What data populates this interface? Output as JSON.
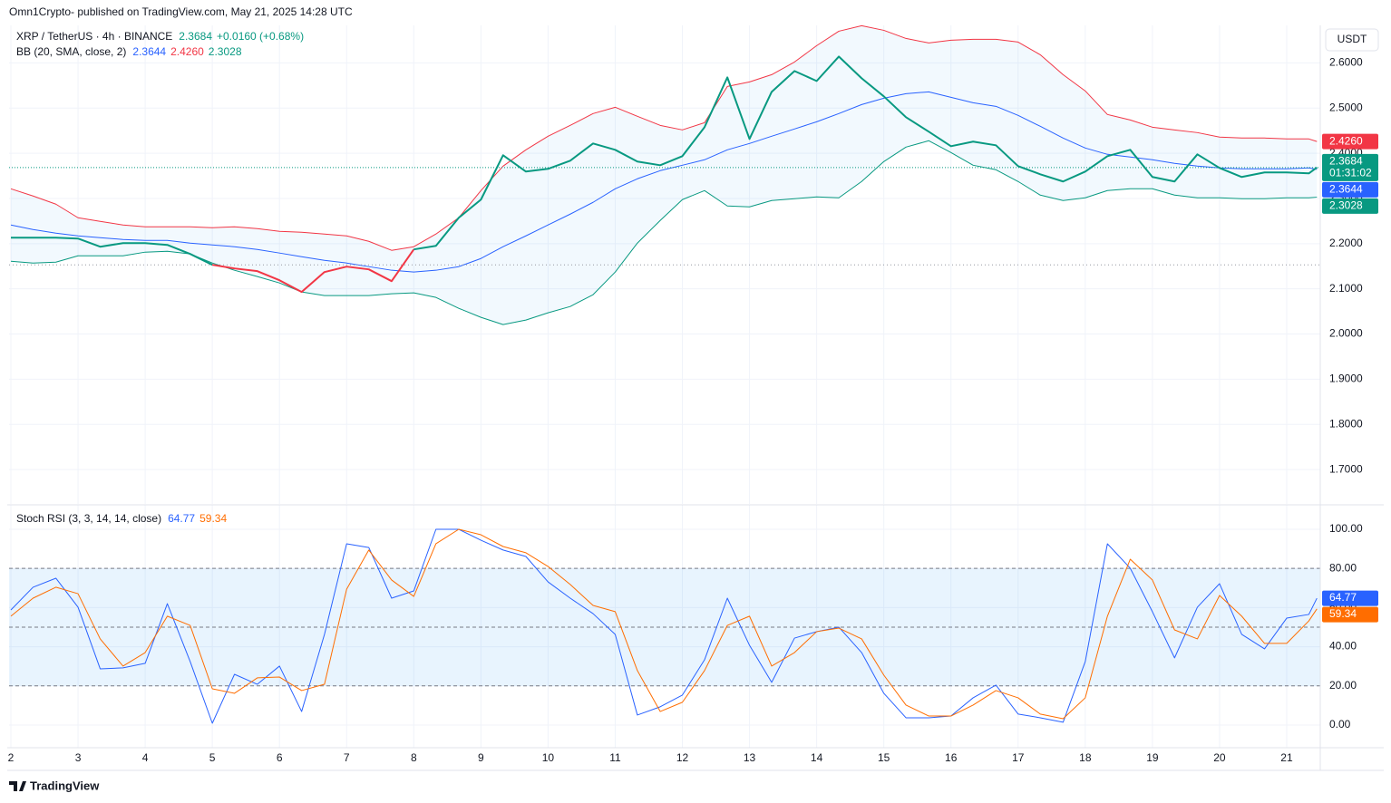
{
  "header": {
    "publisher": "Omn1Crypto- published on TradingView.com, May 21, 2025 14:28 UTC",
    "currency": "USDT",
    "brand": "TradingView"
  },
  "chart_data": [
    {
      "type": "line",
      "title": "XRP / TetherUS · 4h · BINANCE",
      "change": "+0.0160 (+0.68%)",
      "countdown": "01:31:02",
      "x": [
        2,
        2.33,
        2.67,
        3,
        3.33,
        3.67,
        4,
        4.33,
        4.67,
        5,
        5.33,
        5.67,
        6,
        6.33,
        6.67,
        7,
        7.33,
        7.67,
        8,
        8.33,
        8.67,
        9,
        9.33,
        9.67,
        10,
        10.33,
        10.67,
        11,
        11.33,
        11.67,
        12,
        12.33,
        12.67,
        13,
        13.33,
        13.67,
        14,
        14.33,
        14.67,
        15,
        15.33,
        15.67,
        16,
        16.33,
        16.67,
        17,
        17.33,
        17.67,
        18,
        18.33,
        18.67,
        19,
        19.33,
        19.67,
        20,
        20.33,
        20.67,
        21,
        21.33,
        21.45
      ],
      "xlim": [
        1.973,
        21.5
      ],
      "xticks": [
        2,
        3,
        4,
        5,
        6,
        7,
        8,
        9,
        10,
        11,
        12,
        13,
        14,
        15,
        16,
        17,
        18,
        19,
        20,
        21
      ],
      "ylim": [
        1.624,
        2.683
      ],
      "yticks": [
        {
          "value": 2.6,
          "label": "2.6000"
        },
        {
          "value": 2.5,
          "label": "2.5000"
        },
        {
          "value": 2.4,
          "label": "2.4000"
        },
        {
          "value": 2.3,
          "label": "2.3000"
        },
        {
          "value": 2.2,
          "label": "2.2000"
        },
        {
          "value": 2.1,
          "label": "2.1000"
        },
        {
          "value": 2.0,
          "label": "2.0000"
        },
        {
          "value": 1.9,
          "label": "1.9000"
        },
        {
          "value": 1.8,
          "label": "1.8000"
        },
        {
          "value": 1.7,
          "label": "1.7000"
        }
      ],
      "grid": true,
      "x_labels": false,
      "price_line": true,
      "reference_level": 2.1531,
      "price": {
        "values": [
          2.2132,
          2.2132,
          2.2132,
          2.2112,
          2.1932,
          2.2012,
          2.2012,
          2.1972,
          2.1772,
          2.1531,
          2.1451,
          2.1391,
          2.119,
          2.093,
          2.1371,
          2.1491,
          2.1431,
          2.117,
          2.1872,
          2.1952,
          2.2573,
          2.2974,
          2.3956,
          2.3595,
          2.3655,
          2.3836,
          2.4216,
          2.4076,
          2.3816,
          2.3735,
          2.3936,
          2.4577,
          2.5679,
          2.4317,
          2.5359,
          2.582,
          2.5599,
          2.614,
          2.5659,
          2.5259,
          2.4798,
          2.4477,
          2.4156,
          2.4257,
          2.4176,
          2.3715,
          2.3535,
          2.3375,
          2.3595,
          2.3936,
          2.4076,
          2.3475,
          2.3375,
          2.3976,
          2.3675,
          2.3475,
          2.3575,
          2.3575,
          2.3555,
          2.3684
        ],
        "segment_colors": [
          "#089981",
          "#089981",
          "#089981",
          "#089981",
          "#089981",
          "#089981",
          "#089981",
          "#089981",
          "#089981",
          "#f23645",
          "#f23645",
          "#f23645",
          "#f23645",
          "#f23645",
          "#f23645",
          "#f23645",
          "#f23645",
          "#f23645",
          "#089981",
          "#089981",
          "#089981",
          "#089981",
          "#089981",
          "#089981",
          "#089981",
          "#089981",
          "#089981",
          "#089981",
          "#089981",
          "#089981",
          "#089981",
          "#089981",
          "#089981",
          "#089981",
          "#089981",
          "#089981",
          "#089981",
          "#089981",
          "#089981",
          "#089981",
          "#089981",
          "#089981",
          "#089981",
          "#089981",
          "#089981",
          "#089981",
          "#089981",
          "#089981",
          "#089981",
          "#089981",
          "#089981",
          "#089981",
          "#089981",
          "#089981",
          "#089981",
          "#089981",
          "#089981",
          "#089981",
          "#089981"
        ]
      },
      "bb": {
        "label": "BB (20, SMA, close, 2)",
        "fill": "rgba(33,150,243,0.06)",
        "basis": {
          "color": "#2962ff",
          "last_label": "2.3644",
          "values": [
            2.2413,
            2.2313,
            2.2232,
            2.2172,
            2.2132,
            2.2092,
            2.2072,
            2.2072,
            2.2012,
            2.1972,
            2.1932,
            2.1872,
            2.1792,
            2.1711,
            2.1631,
            2.1571,
            2.1491,
            2.1411,
            2.1371,
            2.1411,
            2.1491,
            2.1671,
            2.1932,
            2.2172,
            2.2413,
            2.2653,
            2.2914,
            2.3214,
            2.3435,
            2.3615,
            2.3735,
            2.3856,
            2.4076,
            2.4216,
            2.4377,
            2.4537,
            2.4697,
            2.4878,
            2.5078,
            2.5218,
            2.5319,
            2.5359,
            2.5238,
            2.5118,
            2.5038,
            2.4838,
            2.4597,
            2.4337,
            2.4116,
            2.3976,
            2.3916,
            2.3856,
            2.3776,
            2.3715,
            2.3675,
            2.3655,
            2.3655,
            2.3655,
            2.3675,
            2.3644
          ]
        },
        "upper": {
          "color": "#f23645",
          "last_label": "2.4260",
          "values": [
            2.3214,
            2.3054,
            2.2874,
            2.2573,
            2.2493,
            2.2413,
            2.2373,
            2.2373,
            2.2373,
            2.2353,
            2.2373,
            2.2333,
            2.2273,
            2.2253,
            2.2212,
            2.2172,
            2.2052,
            2.1852,
            2.1932,
            2.2212,
            2.2573,
            2.3174,
            2.3715,
            2.4076,
            2.4377,
            2.4617,
            2.4878,
            2.5018,
            2.4818,
            2.4617,
            2.4517,
            2.4677,
            2.5479,
            2.5579,
            2.5739,
            2.602,
            2.6381,
            2.6701,
            2.6822,
            2.6721,
            2.6541,
            2.6441,
            2.6501,
            2.6521,
            2.6521,
            2.6461,
            2.618,
            2.5739,
            2.5379,
            2.4858,
            2.4737,
            2.4577,
            2.4517,
            2.4457,
            2.4357,
            2.4337,
            2.4337,
            2.4317,
            2.4317,
            2.426
          ]
        },
        "lower": {
          "color": "#089981",
          "last_label": "2.3028",
          "values": [
            2.1611,
            2.1571,
            2.1591,
            2.1731,
            2.1731,
            2.1731,
            2.1812,
            2.1832,
            2.1772,
            2.1571,
            2.1411,
            2.1271,
            2.113,
            2.093,
            2.085,
            2.085,
            2.085,
            2.089,
            2.091,
            2.081,
            2.0569,
            2.0369,
            2.0208,
            2.0309,
            2.0469,
            2.0609,
            2.087,
            2.1371,
            2.2012,
            2.2513,
            2.2974,
            2.3174,
            2.2834,
            2.2814,
            2.2954,
            2.2994,
            2.3034,
            2.3014,
            2.3375,
            2.3816,
            2.4136,
            2.4277,
            2.4016,
            2.3735,
            2.3635,
            2.3375,
            2.3074,
            2.2954,
            2.3014,
            2.3174,
            2.3214,
            2.3214,
            2.3074,
            2.3014,
            2.3014,
            2.2994,
            2.2994,
            2.3014,
            2.3014,
            2.3028
          ]
        }
      }
    },
    {
      "type": "line",
      "title": "Stoch RSI (3, 3, 14, 14, close)",
      "x": [
        2,
        2.33,
        2.67,
        3,
        3.33,
        3.67,
        4,
        4.33,
        4.67,
        5,
        5.33,
        5.67,
        6,
        6.33,
        6.67,
        7,
        7.33,
        7.67,
        8,
        8.33,
        8.67,
        9,
        9.33,
        9.67,
        10,
        10.33,
        10.67,
        11,
        11.33,
        11.67,
        12,
        12.33,
        12.67,
        13,
        13.33,
        13.67,
        14,
        14.33,
        14.67,
        15,
        15.33,
        15.67,
        16,
        16.33,
        16.67,
        17,
        17.33,
        17.67,
        18,
        18.33,
        18.67,
        19,
        19.33,
        19.67,
        20,
        20.33,
        20.67,
        21,
        21.33,
        21.45
      ],
      "xlim": [
        1.973,
        21.5
      ],
      "xticks": [
        2,
        3,
        4,
        5,
        6,
        7,
        8,
        9,
        10,
        11,
        12,
        13,
        14,
        15,
        16,
        17,
        18,
        19,
        20,
        21
      ],
      "ylim": [
        -11.6,
        112.5
      ],
      "yticks": [
        {
          "value": 100,
          "label": "100.00"
        },
        {
          "value": 80,
          "label": "80.00"
        },
        {
          "value": 60,
          "label": "60.00"
        },
        {
          "value": 40,
          "label": "40.00"
        },
        {
          "value": 20,
          "label": "20.00"
        },
        {
          "value": 0,
          "label": "0.00"
        }
      ],
      "grid": true,
      "x_labels": true,
      "levels": [
        80,
        50,
        20
      ],
      "band": [
        20,
        80
      ],
      "band_fill": "rgba(33,150,243,0.1)",
      "series": [
        {
          "color": "#2962ff",
          "values": [
            58.8,
            70.4,
            75.0,
            60.2,
            28.7,
            29.2,
            31.5,
            62.0,
            32.4,
            0.9,
            25.9,
            20.8,
            30.1,
            6.9,
            46.3,
            92.6,
            90.7,
            64.8,
            68.5,
            100,
            100,
            94.4,
            89.4,
            86.1,
            73.1,
            64.8,
            56.9,
            46.3,
            5.1,
            9.3,
            15.3,
            33.3,
            64.8,
            40.7,
            21.8,
            44.4,
            47.7,
            50.0,
            37.0,
            16.2,
            3.7,
            3.7,
            4.6,
            13.9,
            20.4,
            5.6,
            3.7,
            1.4,
            32.4,
            92.6,
            80.1,
            57.9,
            34.3,
            60.2,
            72.2,
            46.3,
            38.9,
            54.6,
            56.5,
            64.77
          ]
        },
        {
          "color": "#ff6d00",
          "values": [
            55.6,
            64.8,
            70.4,
            67.1,
            44.0,
            30.1,
            37.0,
            55.6,
            50.9,
            18.5,
            16.2,
            24.1,
            24.5,
            17.6,
            20.8,
            69.4,
            89.4,
            74.1,
            65.7,
            92.6,
            100,
            97.2,
            91.2,
            88.0,
            81.0,
            71.8,
            61.1,
            57.9,
            27.8,
            6.9,
            11.6,
            27.8,
            50.9,
            55.6,
            30.1,
            37.0,
            47.7,
            49.5,
            44.0,
            25.5,
            10.2,
            4.6,
            4.6,
            10.2,
            17.6,
            13.9,
            5.6,
            3.2,
            13.9,
            55.6,
            84.7,
            74.1,
            48.6,
            44.0,
            66.2,
            55.6,
            41.7,
            41.7,
            53.2,
            59.34
          ]
        }
      ]
    }
  ]
}
